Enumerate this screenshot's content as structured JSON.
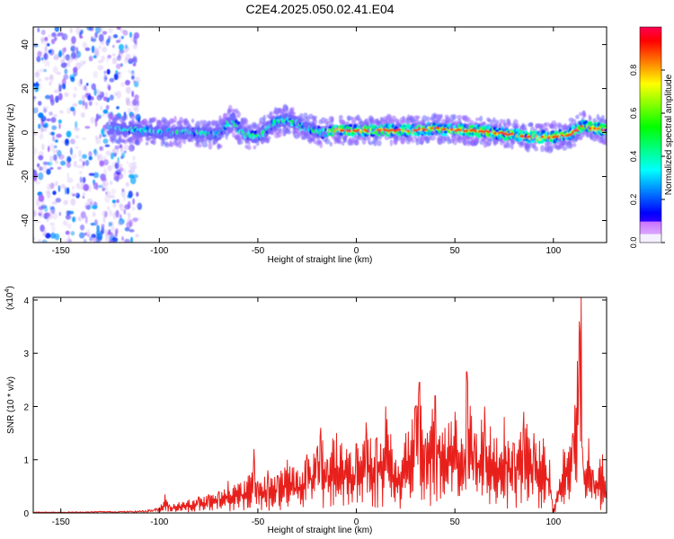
{
  "title": "C2E4.2025.050.02.41.E04",
  "colorbar": {
    "label": "Normalized spectral amplitude",
    "ticks": [
      "0.0",
      "0.2",
      "0.4",
      "0.6",
      "0.8"
    ],
    "tick_values": [
      0.0,
      0.2,
      0.4,
      0.6,
      0.8
    ],
    "range": [
      0,
      1
    ]
  },
  "chart_data": [
    {
      "type": "heatmap",
      "xlabel": "Height of straight line (km)",
      "ylabel": "Frequency (Hz)",
      "xlim": [
        -164,
        127
      ],
      "ylim": [
        -50,
        48
      ],
      "x_ticks": [
        -150,
        -100,
        -50,
        0,
        50,
        100
      ],
      "x_tick_labels": [
        "-150",
        "-100",
        "-50",
        "0",
        "50",
        "100"
      ],
      "y_ticks": [
        -40,
        -20,
        0,
        20,
        40
      ],
      "y_tick_labels": [
        "-40",
        "-20",
        "0",
        "20",
        "40"
      ],
      "noise_region_x": [
        -164,
        -110
      ],
      "ridge": {
        "x": [
          -125,
          -110,
          -95,
          -80,
          -70,
          -63,
          -58,
          -50,
          -42,
          -35,
          -25,
          -18,
          -10,
          0,
          10,
          20,
          30,
          40,
          50,
          60,
          70,
          80,
          90,
          100,
          108,
          115,
          120,
          127
        ],
        "freq": [
          2,
          1,
          0,
          0,
          -1,
          6,
          0,
          -2,
          4,
          6,
          2,
          0,
          1,
          1,
          1,
          1,
          1,
          2,
          1,
          1,
          0,
          -1,
          -2,
          -2,
          -1,
          3,
          2,
          1
        ],
        "amplitude": [
          0.35,
          0.4,
          0.45,
          0.45,
          0.45,
          0.5,
          0.5,
          0.5,
          0.55,
          0.55,
          0.5,
          0.55,
          0.8,
          0.8,
          0.8,
          0.75,
          0.8,
          0.75,
          0.8,
          0.8,
          0.8,
          0.85,
          0.8,
          0.8,
          0.75,
          0.8,
          0.85,
          0.85
        ]
      }
    },
    {
      "type": "line",
      "xlabel": "Height of straight line (km)",
      "ylabel": "SNR (10 * v/v)",
      "y_multiplier": "(x10",
      "y_multiplier_exp": "4",
      "y_multiplier_close": ")",
      "xlim": [
        -164,
        127
      ],
      "ylim": [
        0,
        4.05
      ],
      "x_ticks": [
        -150,
        -100,
        -50,
        0,
        50,
        100
      ],
      "x_tick_labels": [
        "-150",
        "-100",
        "-50",
        "0",
        "50",
        "100"
      ],
      "y_ticks": [
        0,
        1,
        2,
        3,
        4
      ],
      "y_tick_labels": [
        "0",
        "1",
        "2",
        "3",
        "4"
      ],
      "color": "#e8201c",
      "series": [
        {
          "x": [
            -164,
            -150,
            -140,
            -130,
            -120,
            -110,
            -105,
            -100,
            -97,
            -95,
            -90,
            -85,
            -80,
            -75,
            -70,
            -65,
            -60,
            -55,
            -52,
            -50,
            -45,
            -40,
            -35,
            -30,
            -25,
            -20,
            -18,
            -15,
            -12,
            -10,
            -5,
            0,
            5,
            10,
            15,
            20,
            25,
            30,
            32,
            35,
            40,
            45,
            50,
            55,
            56,
            60,
            65,
            70,
            75,
            80,
            85,
            90,
            95,
            98,
            100,
            105,
            110,
            113,
            114,
            115,
            118,
            120,
            125,
            127
          ],
          "y": [
            0.02,
            0.02,
            0.02,
            0.03,
            0.03,
            0.04,
            0.06,
            0.1,
            0.35,
            0.15,
            0.2,
            0.25,
            0.3,
            0.35,
            0.4,
            0.6,
            0.55,
            0.7,
            1.2,
            0.6,
            0.8,
            0.7,
            1.0,
            0.8,
            1.1,
            1.2,
            1.6,
            1.0,
            1.4,
            1.5,
            1.2,
            1.3,
            1.7,
            1.4,
            2.0,
            1.0,
            1.5,
            2.0,
            2.45,
            1.4,
            2.2,
            1.6,
            1.9,
            1.2,
            2.65,
            1.5,
            2.0,
            1.4,
            1.8,
            1.3,
            1.9,
            1.5,
            1.4,
            1.0,
            0.02,
            1.2,
            1.5,
            3.6,
            4.05,
            0.9,
            1.4,
            0.8,
            1.1,
            0.4
          ]
        }
      ]
    }
  ]
}
